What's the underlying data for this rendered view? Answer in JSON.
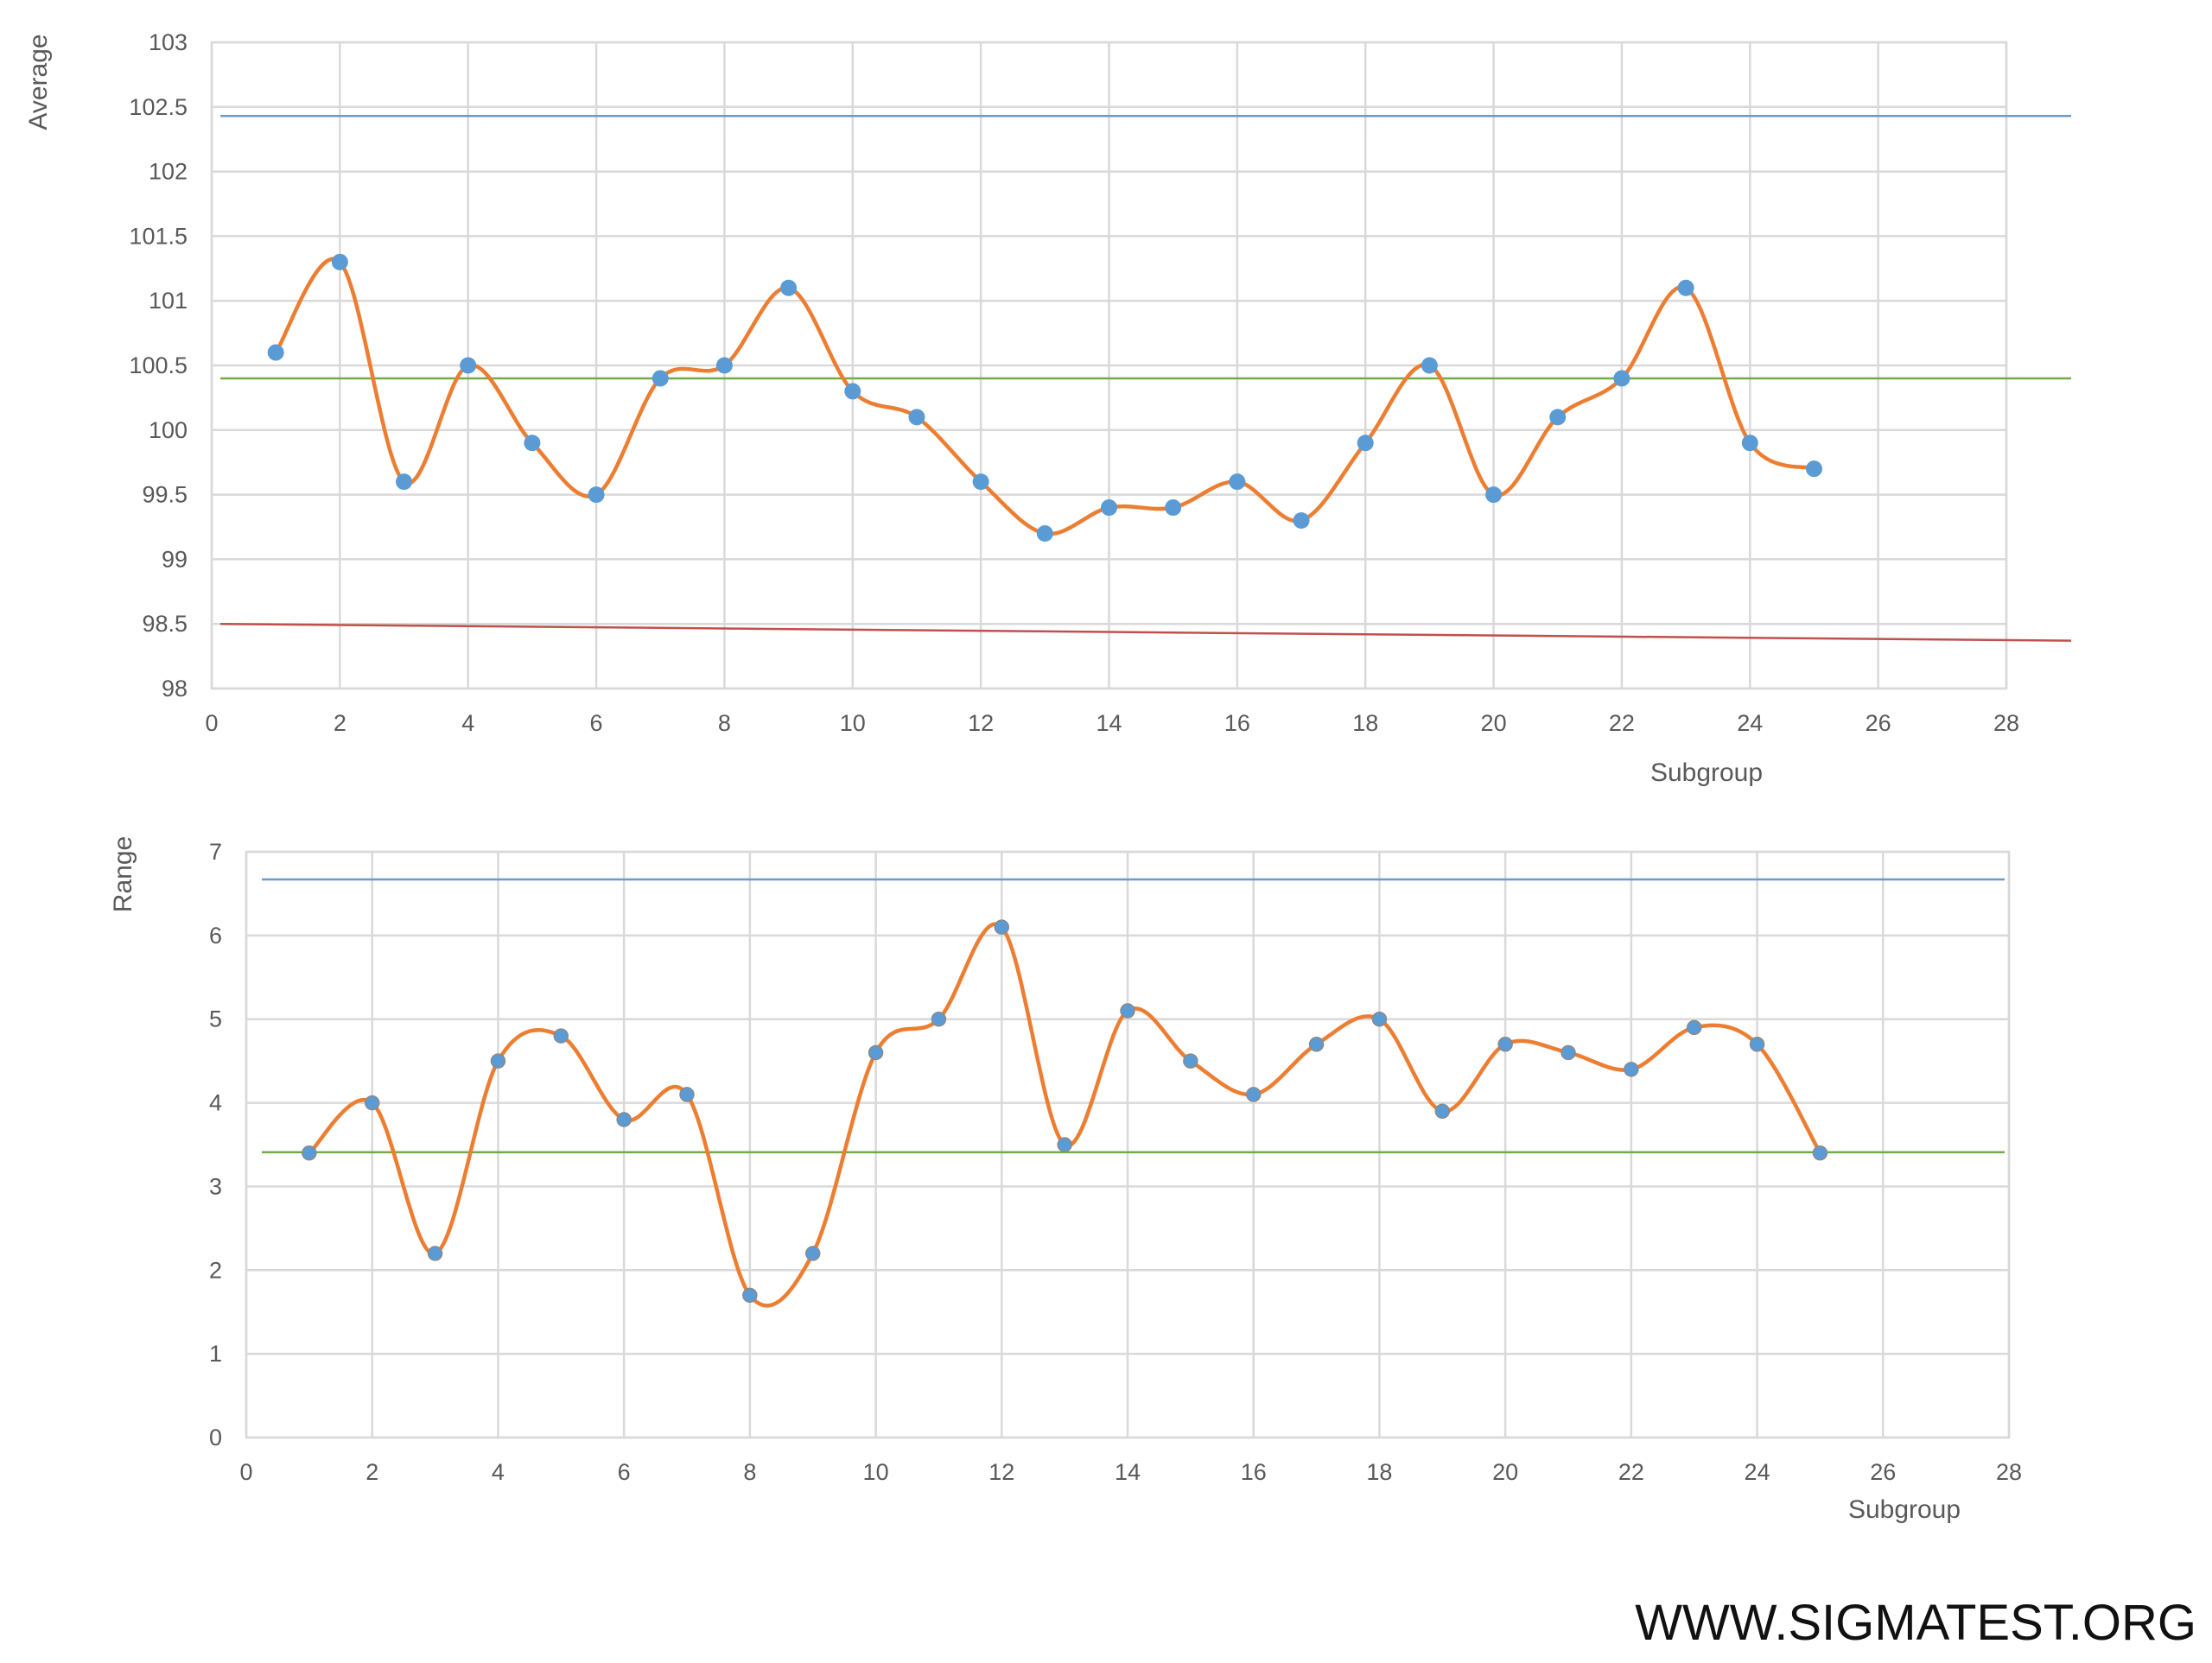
{
  "watermark": "WWW.SIGMATEST.ORG",
  "colors": {
    "series": "#ED7D31",
    "marker": "#5B9BD5",
    "upper_limit": "#6E99C8",
    "center_line": "#70AD47",
    "lower_limit": "#C0504D",
    "grid": "#D9D9D9",
    "tick_text": "#595959"
  },
  "chart_data": [
    {
      "type": "line",
      "title": "",
      "xlabel": "Subgroup",
      "ylabel": "Average",
      "xlim": [
        0,
        28
      ],
      "ylim": [
        98,
        103
      ],
      "xticks": [
        "0",
        "2",
        "4",
        "6",
        "8",
        "10",
        "12",
        "14",
        "16",
        "18",
        "20",
        "22",
        "24",
        "26",
        "28"
      ],
      "yticks": [
        "98",
        "98.5",
        "99",
        "99.5",
        "100",
        "100.5",
        "101",
        "101.5",
        "102",
        "102.5",
        "103"
      ],
      "grid": true,
      "smoothed": true,
      "x": [
        1,
        2,
        3,
        4,
        5,
        6,
        7,
        8,
        9,
        10,
        11,
        12,
        13,
        14,
        15,
        16,
        17,
        18,
        19,
        20,
        21,
        22,
        23,
        24,
        25
      ],
      "values": [
        100.6,
        101.3,
        99.6,
        100.5,
        99.9,
        99.5,
        100.4,
        100.5,
        101.1,
        100.3,
        100.1,
        99.6,
        99.2,
        99.4,
        99.4,
        99.6,
        99.3,
        99.9,
        100.5,
        99.5,
        100.1,
        100.4,
        101.1,
        99.9,
        99.7
      ],
      "reference_lines": [
        {
          "role": "upper",
          "y": 102.43
        },
        {
          "role": "center",
          "y": 100.4
        },
        {
          "role": "lower",
          "y_start": 98.5,
          "y_end": 98.37
        }
      ]
    },
    {
      "type": "line",
      "title": "",
      "xlabel": "Subgroup",
      "ylabel": "Range",
      "xlim": [
        0,
        28
      ],
      "ylim": [
        0,
        7
      ],
      "xticks": [
        "0",
        "2",
        "4",
        "6",
        "8",
        "10",
        "12",
        "14",
        "16",
        "18",
        "20",
        "22",
        "24",
        "26",
        "28"
      ],
      "yticks": [
        "0",
        "1",
        "2",
        "3",
        "4",
        "5",
        "6",
        "7"
      ],
      "grid": true,
      "smoothed": true,
      "x": [
        1,
        2,
        3,
        4,
        5,
        6,
        7,
        8,
        9,
        10,
        11,
        12,
        13,
        14,
        15,
        16,
        17,
        18,
        19,
        20,
        21,
        22,
        23,
        24,
        25
      ],
      "values": [
        3.4,
        4.0,
        2.2,
        4.5,
        4.8,
        3.8,
        4.1,
        1.7,
        2.2,
        4.6,
        5.0,
        6.1,
        3.5,
        5.1,
        4.5,
        4.1,
        4.7,
        5.0,
        3.9,
        4.7,
        4.6,
        4.4,
        4.9,
        4.7,
        3.4
      ],
      "reference_lines": [
        {
          "role": "upper",
          "y": 6.67
        },
        {
          "role": "center",
          "y": 3.41
        }
      ]
    }
  ]
}
